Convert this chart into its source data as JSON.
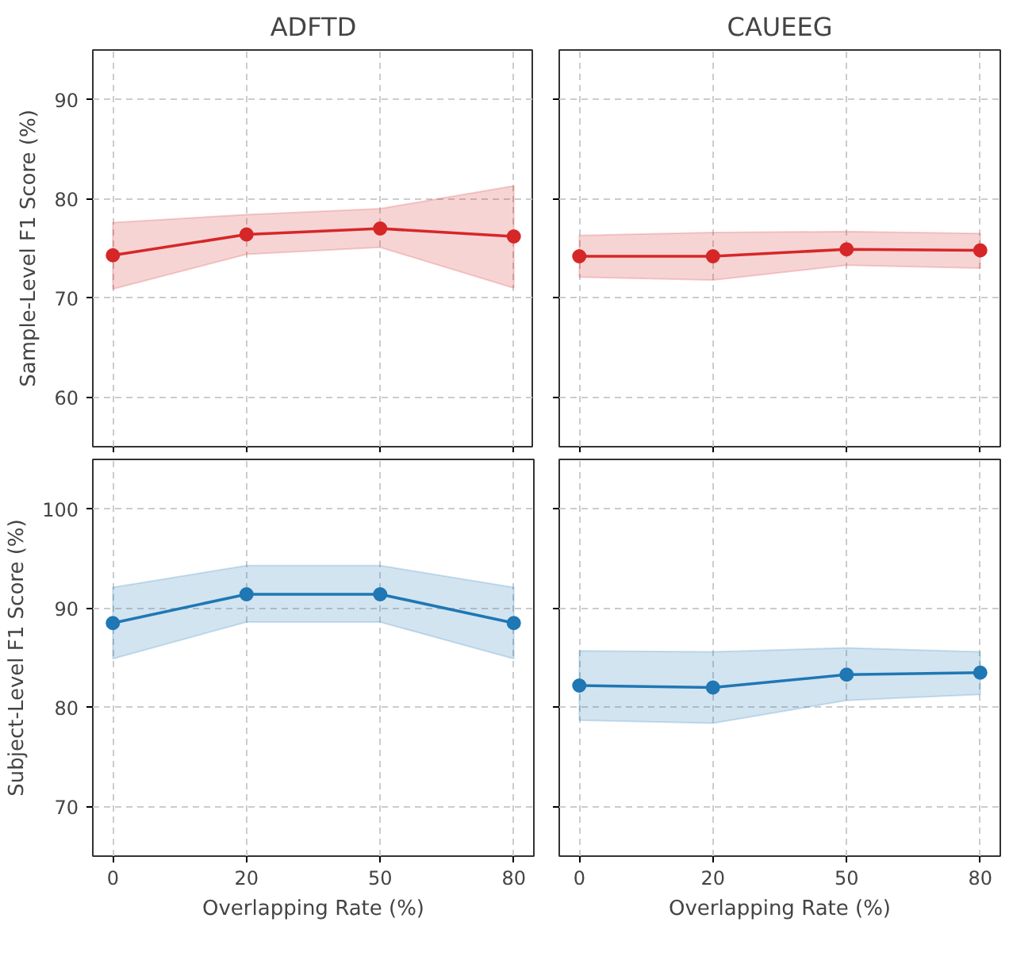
{
  "chart_data": [
    {
      "type": "line",
      "title": "ADFTD",
      "ylabel": "Sample-Level F1 Score (%)",
      "categories": [
        "0",
        "20",
        "50",
        "80"
      ],
      "ylim": [
        55,
        95
      ],
      "yticks": [
        60,
        70,
        80,
        90
      ],
      "grid": true,
      "marker": "circle",
      "line_style": "solid",
      "tick_labels": "y",
      "series": [
        {
          "color": "#d62728",
          "values": [
            74.3,
            76.4,
            77.0,
            76.2
          ],
          "lower": [
            70.9,
            74.4,
            75.1,
            71.0
          ],
          "upper": [
            77.6,
            78.4,
            79.0,
            81.3
          ]
        }
      ]
    },
    {
      "type": "line",
      "title": "CAUEEG",
      "categories": [
        "0",
        "20",
        "50",
        "80"
      ],
      "ylim": [
        55,
        95
      ],
      "yticks": [
        60,
        70,
        80,
        90
      ],
      "grid": true,
      "marker": "circle",
      "line_style": "solid",
      "tick_labels": false,
      "series": [
        {
          "color": "#d62728",
          "values": [
            74.2,
            74.2,
            74.9,
            74.8
          ],
          "lower": [
            72.1,
            71.8,
            73.3,
            73.0
          ],
          "upper": [
            76.3,
            76.6,
            76.7,
            76.5
          ]
        }
      ]
    },
    {
      "type": "line",
      "xlabel": "Overlapping Rate (%)",
      "ylabel": "Subject-Level F1 Score (%)",
      "categories": [
        "0",
        "20",
        "50",
        "80"
      ],
      "ylim": [
        65,
        105
      ],
      "yticks": [
        70,
        80,
        90,
        100
      ],
      "grid": true,
      "marker": "circle",
      "line_style": "solid",
      "series": [
        {
          "color": "#1f77b4",
          "values": [
            88.5,
            91.4,
            91.4,
            88.5
          ],
          "lower": [
            84.9,
            88.6,
            88.6,
            84.9
          ],
          "upper": [
            92.1,
            94.3,
            94.3,
            92.1
          ]
        }
      ]
    },
    {
      "type": "line",
      "xlabel": "Overlapping Rate (%)",
      "categories": [
        "0",
        "20",
        "50",
        "80"
      ],
      "ylim": [
        65,
        105
      ],
      "yticks": [
        70,
        80,
        90,
        100
      ],
      "grid": true,
      "marker": "circle",
      "line_style": "solid",
      "tick_labels": "x",
      "series": [
        {
          "color": "#1f77b4",
          "values": [
            82.2,
            82.0,
            83.3,
            83.5
          ],
          "lower": [
            78.7,
            78.4,
            80.7,
            81.3
          ],
          "upper": [
            85.7,
            85.6,
            86.0,
            85.6
          ]
        }
      ]
    }
  ]
}
